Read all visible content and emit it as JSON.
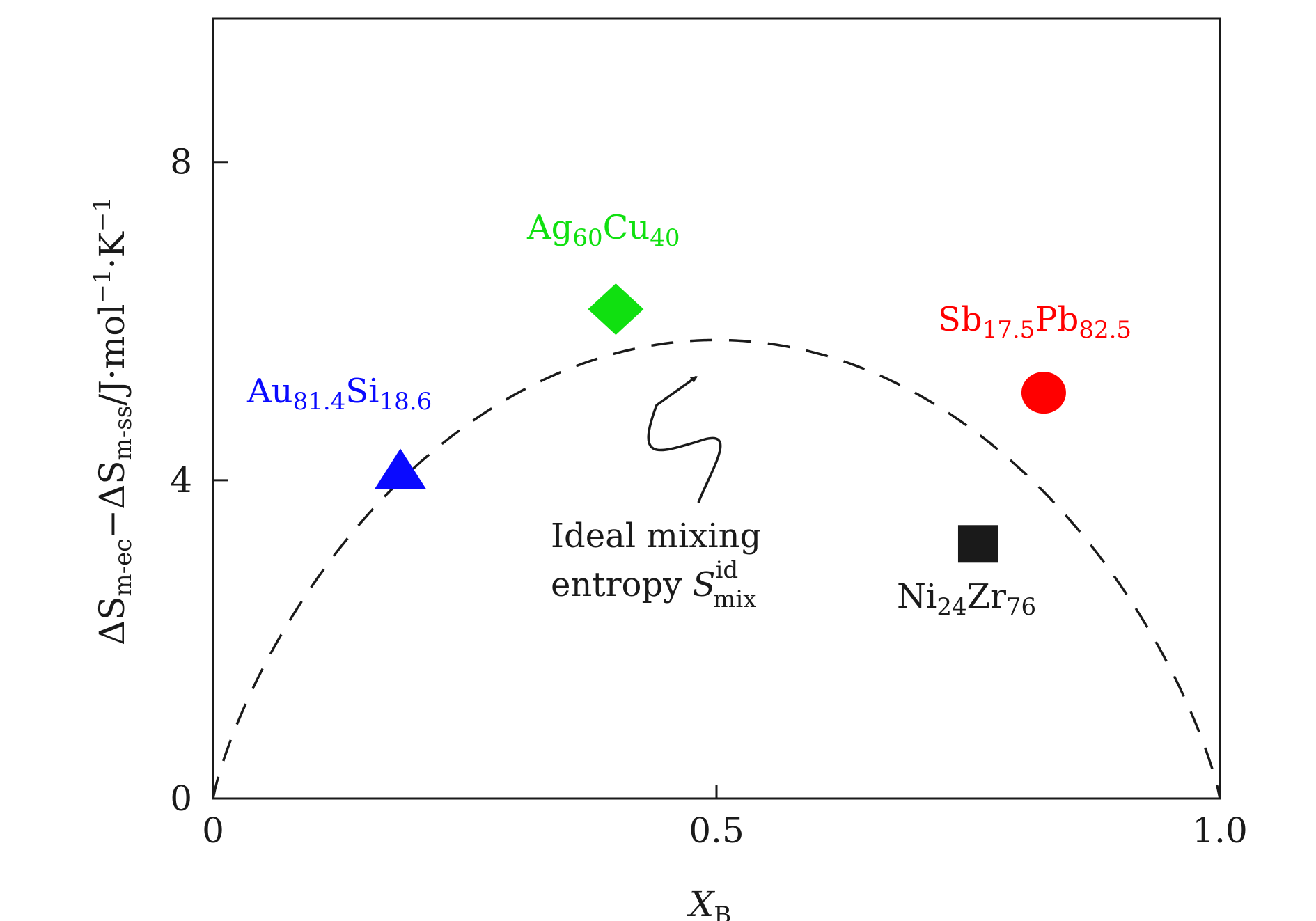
{
  "chart_data": {
    "type": "scatter",
    "xlabel": {
      "main": "X",
      "sub": "B"
    },
    "ylabel": {
      "p1": "ΔS",
      "s1": "m-ec",
      "p2": "−ΔS",
      "s2": "m-ss",
      "p3": "/J·mol",
      "s3": "−1",
      "p4": "·K",
      "s4": "−1"
    },
    "xlim": [
      0,
      1.0
    ],
    "ylim": [
      0,
      9.8
    ],
    "xticks": [
      {
        "value": 0,
        "label": "0"
      },
      {
        "value": 0.5,
        "label": "0.5"
      },
      {
        "value": 1.0,
        "label": "1.0"
      }
    ],
    "yticks": [
      {
        "value": 0,
        "label": "0"
      },
      {
        "value": 4,
        "label": "4"
      },
      {
        "value": 8,
        "label": "8"
      }
    ],
    "grid": false,
    "curve": {
      "name": "Ideal mixing entropy",
      "formula": "-R[x ln x + (1-x) ln(1-x)]",
      "style": "dashed",
      "color": "#1a1a1a"
    },
    "points": [
      {
        "x": 0.186,
        "y": 4.1,
        "marker": "triangle",
        "color": "#0a0aff",
        "label": {
          "e1": "Au",
          "n1": "81.4",
          "e2": "Si",
          "n2": "18.6"
        }
      },
      {
        "x": 0.4,
        "y": 6.15,
        "marker": "diamond",
        "color": "#10e010",
        "label": {
          "e1": "Ag",
          "n1": "60",
          "e2": "Cu",
          "n2": "40"
        }
      },
      {
        "x": 0.825,
        "y": 5.1,
        "marker": "circle",
        "color": "#ff0000",
        "label": {
          "e1": "Sb",
          "n1": "17.5",
          "e2": "Pb",
          "n2": "82.5"
        }
      },
      {
        "x": 0.76,
        "y": 3.2,
        "marker": "square",
        "color": "#1a1a1a",
        "label": {
          "e1": "Ni",
          "n1": "24",
          "e2": "Zr",
          "n2": "76"
        }
      }
    ],
    "annotation": {
      "line1": "Ideal mixing",
      "line2": "entropy ",
      "sym": "S",
      "sup": "id",
      "sub": "mix",
      "arrow_target": {
        "x": 0.48,
        "y": 5.3
      }
    }
  }
}
